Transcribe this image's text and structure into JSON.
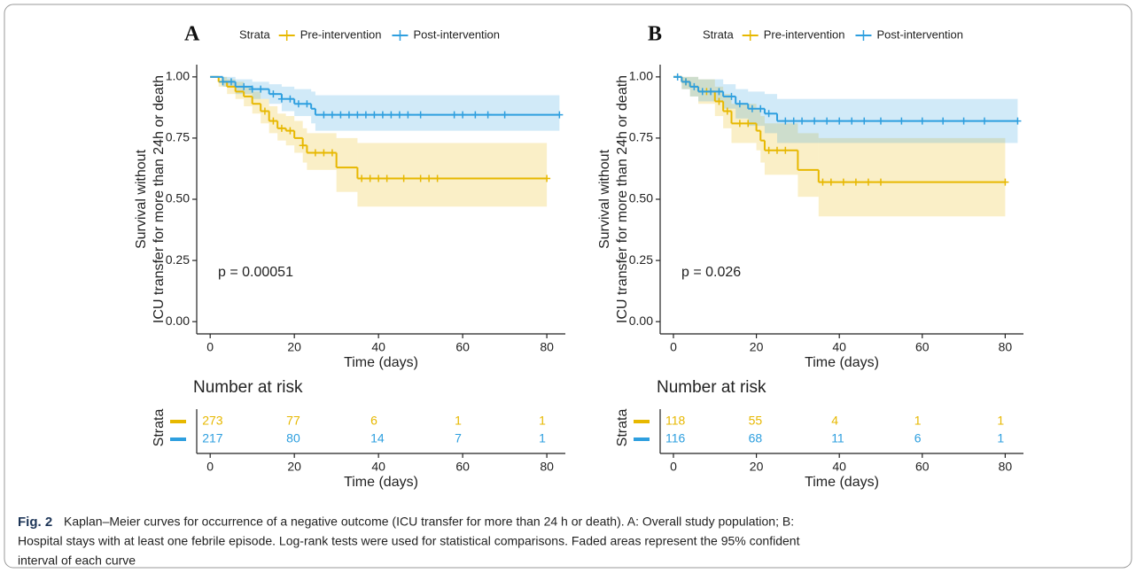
{
  "chart_data": [
    {
      "type": "survival",
      "panel_label": "A",
      "legend_title": "Strata",
      "ylabel": [
        "Survival without",
        "ICU transfer for more than 24h or death"
      ],
      "xlabel": "Time (days)",
      "annotation": "p = 0.00051",
      "xlim": [
        -3.2,
        84.4
      ],
      "ylim": [
        -0.05,
        1.05
      ],
      "xticks": [
        0,
        20,
        40,
        60,
        80
      ],
      "yticks": [
        {
          "value": 0,
          "label": "0.00"
        },
        {
          "value": 0.25,
          "label": "0.25"
        },
        {
          "value": 0.5,
          "label": "0.50"
        },
        {
          "value": 0.75,
          "label": "0.75"
        },
        {
          "value": 1,
          "label": "1.00"
        }
      ],
      "series": [
        {
          "name": "Pre-intervention",
          "color": "#E7B800",
          "x": [
            0,
            2,
            4,
            6,
            8,
            10,
            12,
            14,
            16,
            18,
            20,
            22,
            23,
            30,
            35,
            80
          ],
          "values": [
            1,
            0.98,
            0.96,
            0.94,
            0.92,
            0.89,
            0.86,
            0.82,
            0.79,
            0.78,
            0.75,
            0.72,
            0.69,
            0.63,
            0.585,
            0.585
          ],
          "lower": [
            1,
            0.96,
            0.93,
            0.91,
            0.88,
            0.85,
            0.81,
            0.77,
            0.74,
            0.72,
            0.69,
            0.65,
            0.62,
            0.53,
            0.47,
            0.47
          ],
          "upper": [
            1,
            1,
            0.99,
            0.98,
            0.96,
            0.94,
            0.91,
            0.88,
            0.85,
            0.84,
            0.82,
            0.79,
            0.77,
            0.75,
            0.73,
            0.73
          ],
          "censored": {
            "x": [
              13,
              15,
              17,
              19,
              22,
              25,
              27,
              29,
              36,
              38,
              40,
              42,
              46,
              50,
              52,
              54,
              80
            ],
            "values": [
              0.86,
              0.82,
              0.79,
              0.78,
              0.72,
              0.69,
              0.69,
              0.69,
              0.585,
              0.585,
              0.585,
              0.585,
              0.585,
              0.585,
              0.585,
              0.585,
              0.585
            ]
          }
        },
        {
          "name": "Post-intervention",
          "color": "#2E9FDF",
          "x": [
            0,
            3,
            6,
            10,
            14,
            17,
            20,
            24,
            25,
            83
          ],
          "values": [
            1,
            0.98,
            0.96,
            0.95,
            0.93,
            0.91,
            0.89,
            0.87,
            0.845,
            0.845
          ],
          "lower": [
            1,
            0.96,
            0.93,
            0.91,
            0.89,
            0.86,
            0.84,
            0.81,
            0.78,
            0.78
          ],
          "upper": [
            1,
            1,
            0.99,
            0.98,
            0.97,
            0.96,
            0.95,
            0.94,
            0.925,
            0.925
          ],
          "censored": {
            "x": [
              3,
              5,
              8,
              10,
              12,
              15,
              17,
              19,
              21,
              23,
              27,
              29,
              31,
              33,
              35,
              37,
              39,
              41,
              43,
              45,
              47,
              50,
              58,
              60,
              63,
              66,
              70,
              83
            ],
            "values": [
              0.98,
              0.98,
              0.96,
              0.95,
              0.95,
              0.93,
              0.91,
              0.91,
              0.89,
              0.89,
              0.845,
              0.845,
              0.845,
              0.845,
              0.845,
              0.845,
              0.845,
              0.845,
              0.845,
              0.845,
              0.845,
              0.845,
              0.845,
              0.845,
              0.845,
              0.845,
              0.845,
              0.845
            ]
          }
        }
      ],
      "risk_table": {
        "title": "Number at risk",
        "ylabel": "Strata",
        "xlabel": "Time (days)",
        "times": [
          0,
          20,
          40,
          60,
          80
        ],
        "rows": [
          [
            273,
            77,
            6,
            1,
            1
          ],
          [
            217,
            80,
            14,
            7,
            1
          ]
        ]
      }
    },
    {
      "type": "survival",
      "panel_label": "B",
      "legend_title": "Strata",
      "ylabel": [
        "Survival without",
        "ICU transfer for more than 24h or death"
      ],
      "xlabel": "Time (days)",
      "annotation": "p = 0.026",
      "xlim": [
        -3.2,
        84.4
      ],
      "ylim": [
        -0.05,
        1.05
      ],
      "xticks": [
        0,
        20,
        40,
        60,
        80
      ],
      "yticks": [
        {
          "value": 0,
          "label": "0.00"
        },
        {
          "value": 0.25,
          "label": "0.25"
        },
        {
          "value": 0.5,
          "label": "0.50"
        },
        {
          "value": 0.75,
          "label": "0.75"
        },
        {
          "value": 1,
          "label": "1.00"
        }
      ],
      "series": [
        {
          "name": "Pre-intervention",
          "color": "#E7B800",
          "x": [
            0,
            2,
            4,
            6,
            10,
            12,
            14,
            20,
            21,
            22,
            30,
            35,
            80
          ],
          "values": [
            1,
            0.98,
            0.96,
            0.94,
            0.9,
            0.86,
            0.81,
            0.78,
            0.74,
            0.7,
            0.62,
            0.57,
            0.57
          ],
          "lower": [
            1,
            0.95,
            0.92,
            0.89,
            0.84,
            0.79,
            0.73,
            0.7,
            0.65,
            0.6,
            0.51,
            0.43,
            0.43
          ],
          "upper": [
            1,
            1,
            1,
            0.99,
            0.96,
            0.93,
            0.89,
            0.87,
            0.84,
            0.81,
            0.77,
            0.75,
            0.75
          ],
          "censored": {
            "x": [
              3,
              8,
              11,
              13,
              16,
              18,
              23,
              25,
              27,
              36,
              38,
              41,
              44,
              47,
              50,
              80
            ],
            "values": [
              0.98,
              0.94,
              0.9,
              0.86,
              0.81,
              0.81,
              0.7,
              0.7,
              0.7,
              0.57,
              0.57,
              0.57,
              0.57,
              0.57,
              0.57,
              0.57
            ]
          }
        },
        {
          "name": "Post-intervention",
          "color": "#2E9FDF",
          "x": [
            0,
            2,
            4,
            6,
            12,
            15,
            18,
            22,
            25,
            83
          ],
          "values": [
            1,
            0.98,
            0.96,
            0.94,
            0.92,
            0.89,
            0.87,
            0.85,
            0.82,
            0.82
          ],
          "lower": [
            1,
            0.95,
            0.92,
            0.9,
            0.87,
            0.83,
            0.8,
            0.77,
            0.73,
            0.73
          ],
          "upper": [
            1,
            1,
            1,
            0.99,
            0.97,
            0.95,
            0.94,
            0.93,
            0.91,
            0.91
          ],
          "censored": {
            "x": [
              1,
              3,
              5,
              7,
              9,
              11,
              14,
              16,
              19,
              21,
              23,
              27,
              29,
              31,
              34,
              37,
              40,
              43,
              46,
              50,
              55,
              60,
              65,
              70,
              75,
              83
            ],
            "values": [
              1,
              0.98,
              0.96,
              0.94,
              0.94,
              0.94,
              0.92,
              0.89,
              0.87,
              0.87,
              0.85,
              0.82,
              0.82,
              0.82,
              0.82,
              0.82,
              0.82,
              0.82,
              0.82,
              0.82,
              0.82,
              0.82,
              0.82,
              0.82,
              0.82,
              0.82
            ]
          }
        }
      ],
      "risk_table": {
        "title": "Number at risk",
        "ylabel": "Strata",
        "xlabel": "Time (days)",
        "times": [
          0,
          20,
          40,
          60,
          80
        ],
        "rows": [
          [
            118,
            55,
            4,
            1,
            1
          ],
          [
            116,
            68,
            11,
            6,
            1
          ]
        ]
      }
    }
  ],
  "caption": {
    "label": "Fig. 2",
    "lines": [
      "Kaplan–Meier curves for occurrence of a negative outcome (ICU transfer for more than 24 h or death). A: Overall study population; B:",
      "Hospital stays with at least one febrile episode. Log-rank tests were used for statistical comparisons. Faded areas represent the 95% confident",
      "interval of each curve"
    ]
  }
}
